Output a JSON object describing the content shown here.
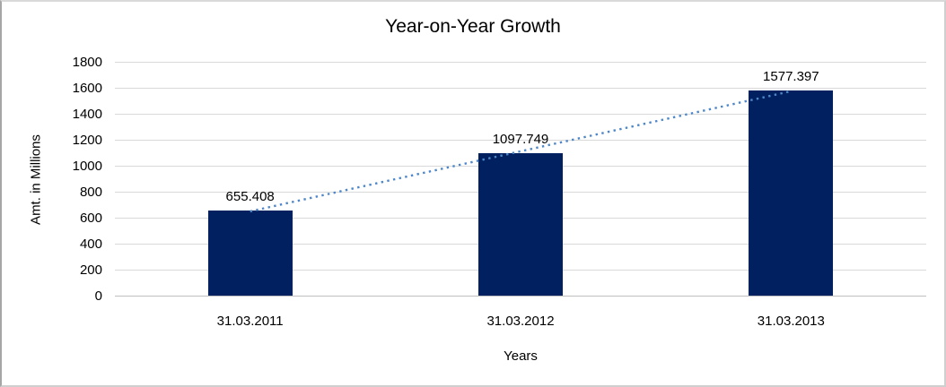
{
  "chart_data": {
    "type": "bar",
    "title": "Year-on-Year Growth",
    "categories": [
      "31.03.2011",
      "31.03.2012",
      "31.03.2013"
    ],
    "values": [
      655.408,
      1097.749,
      1577.397
    ],
    "data_labels": [
      "655.408",
      "1097.749",
      "1577.397"
    ],
    "xlabel": "Years",
    "ylabel": "Amt. in Millions",
    "ylim": [
      0,
      1800
    ],
    "ytick_step": 200,
    "ytick_labels": [
      "0",
      "200",
      "400",
      "600",
      "800",
      "1000",
      "1200",
      "1400",
      "1600",
      "1800"
    ],
    "grid": true,
    "legend": false,
    "trendline": {
      "style": "dotted",
      "spans": "first-to-last-category",
      "start_value": 655.408,
      "end_value": 1577.397
    },
    "colors": {
      "bar": "#002060",
      "trendline": "#4e87c8",
      "gridline": "#d9d9d9",
      "axis_line": "#bfbfbf",
      "text": "#000000",
      "frame_border": "#a6a6a6",
      "background": "#ffffff"
    }
  }
}
